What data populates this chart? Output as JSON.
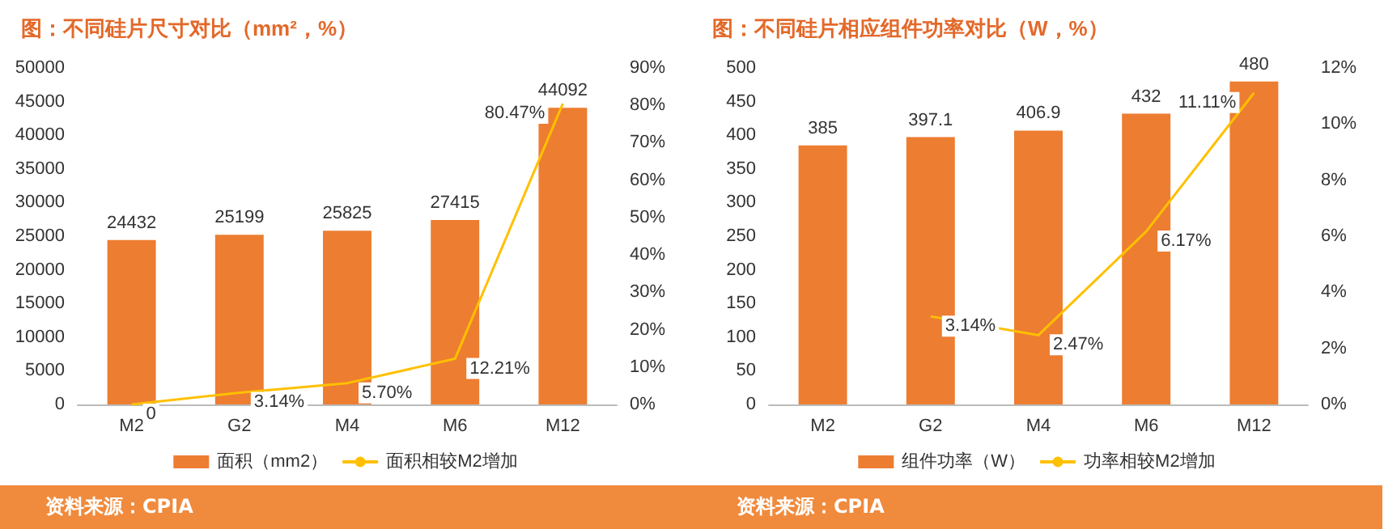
{
  "chart_data": [
    {
      "type": "bar",
      "title": "图：不同硅片尺寸对比（mm²，%）",
      "categories": [
        "M2",
        "G2",
        "M4",
        "M6",
        "M12"
      ],
      "series": [
        {
          "name": "面积（mm2）",
          "color": "#ed7d31",
          "values": [
            24432,
            25199,
            25825,
            27415,
            44092
          ]
        },
        {
          "name": "面积相较M2增加",
          "type": "line",
          "axis": "y2",
          "color": "#ffc000",
          "values": [
            0,
            3.14,
            5.7,
            12.21,
            80.47
          ],
          "value_labels": [
            "0",
            "3.14%",
            "5.70%",
            "12.21%",
            "80.47%"
          ]
        }
      ],
      "data_labels": true,
      "ylim": [
        0,
        50000
      ],
      "yticks": [
        0,
        5000,
        10000,
        15000,
        20000,
        25000,
        30000,
        35000,
        40000,
        45000,
        50000
      ],
      "y2lim": [
        0,
        90
      ],
      "y2ticks": [
        {
          "value": 0,
          "label": "0%"
        },
        {
          "value": 10,
          "label": "10%"
        },
        {
          "value": 20,
          "label": "20%"
        },
        {
          "value": 30,
          "label": "30%"
        },
        {
          "value": 40,
          "label": "40%"
        },
        {
          "value": 50,
          "label": "50%"
        },
        {
          "value": 60,
          "label": "60%"
        },
        {
          "value": 70,
          "label": "70%"
        },
        {
          "value": 80,
          "label": "80%"
        },
        {
          "value": 90,
          "label": "90%"
        }
      ],
      "legend": "bottom",
      "grid": false,
      "marker": "none",
      "annotations": [
        "资料来源：CPIA"
      ]
    },
    {
      "type": "bar",
      "title": "图：不同硅片相应组件功率对比（W，%）",
      "categories": [
        "M2",
        "G2",
        "M4",
        "M6",
        "M12"
      ],
      "series": [
        {
          "name": "组件功率（W）",
          "color": "#ed7d31",
          "values": [
            385,
            397.1,
            406.9,
            432,
            480
          ]
        },
        {
          "name": "功率相较M2增加",
          "type": "line",
          "axis": "y2",
          "color": "#ffc000",
          "values": [
            null,
            3.14,
            2.47,
            6.17,
            11.11
          ],
          "value_labels": [
            null,
            "3.14%",
            "2.47%",
            "6.17%",
            "11.11%"
          ]
        }
      ],
      "data_labels": true,
      "ylim": [
        0,
        500
      ],
      "yticks": [
        0,
        50,
        100,
        150,
        200,
        250,
        300,
        350,
        400,
        450,
        500
      ],
      "y2lim": [
        0,
        12
      ],
      "y2ticks": [
        {
          "value": 0,
          "label": "0%"
        },
        {
          "value": 2,
          "label": "2%"
        },
        {
          "value": 4,
          "label": "4%"
        },
        {
          "value": 6,
          "label": "6%"
        },
        {
          "value": 8,
          "label": "8%"
        },
        {
          "value": 10,
          "label": "10%"
        },
        {
          "value": 12,
          "label": "12%"
        }
      ],
      "legend": "bottom",
      "grid": false,
      "marker": "none",
      "annotations": [
        "资料来源：CPIA"
      ]
    }
  ]
}
